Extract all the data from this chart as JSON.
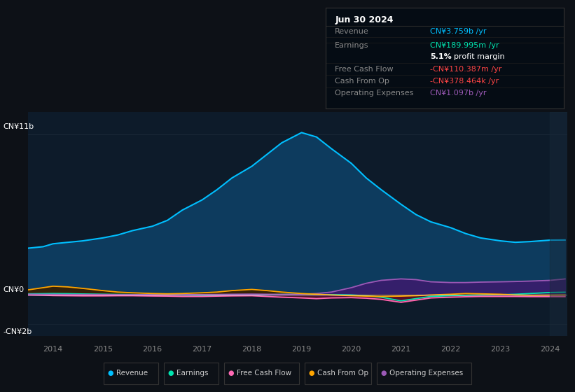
{
  "bg_color": "#0d1117",
  "chart_bg": "#0d1b2a",
  "years": [
    2013.5,
    2013.8,
    2014.0,
    2014.3,
    2014.6,
    2015.0,
    2015.3,
    2015.6,
    2016.0,
    2016.3,
    2016.6,
    2017.0,
    2017.3,
    2017.6,
    2018.0,
    2018.3,
    2018.6,
    2019.0,
    2019.3,
    2019.6,
    2020.0,
    2020.3,
    2020.6,
    2021.0,
    2021.3,
    2021.6,
    2022.0,
    2022.3,
    2022.6,
    2023.0,
    2023.3,
    2023.6,
    2024.0,
    2024.3
  ],
  "revenue": [
    3.2,
    3.3,
    3.5,
    3.6,
    3.7,
    3.9,
    4.1,
    4.4,
    4.7,
    5.1,
    5.8,
    6.5,
    7.2,
    8.0,
    8.8,
    9.6,
    10.4,
    11.1,
    10.8,
    10.0,
    9.0,
    8.0,
    7.2,
    6.2,
    5.5,
    5.0,
    4.6,
    4.2,
    3.9,
    3.7,
    3.6,
    3.65,
    3.75,
    3.759
  ],
  "earnings": [
    0.08,
    0.09,
    0.1,
    0.09,
    0.07,
    0.05,
    0.04,
    0.03,
    0.02,
    0.01,
    0.0,
    -0.02,
    -0.03,
    -0.02,
    0.0,
    0.02,
    0.04,
    0.05,
    0.04,
    0.02,
    0.0,
    -0.05,
    -0.15,
    -0.4,
    -0.25,
    -0.1,
    -0.05,
    -0.02,
    0.0,
    0.02,
    0.05,
    0.1,
    0.17,
    0.19
  ],
  "free_cash_flow": [
    0.0,
    -0.02,
    -0.04,
    -0.05,
    -0.06,
    -0.06,
    -0.05,
    -0.05,
    -0.07,
    -0.08,
    -0.1,
    -0.1,
    -0.08,
    -0.06,
    -0.05,
    -0.1,
    -0.15,
    -0.2,
    -0.25,
    -0.2,
    -0.18,
    -0.22,
    -0.3,
    -0.5,
    -0.35,
    -0.2,
    -0.15,
    -0.12,
    -0.1,
    -0.1,
    -0.1,
    -0.11,
    -0.11,
    -0.11
  ],
  "cash_from_op": [
    0.35,
    0.5,
    0.6,
    0.55,
    0.45,
    0.3,
    0.2,
    0.15,
    0.1,
    0.08,
    0.1,
    0.15,
    0.2,
    0.3,
    0.38,
    0.3,
    0.2,
    0.1,
    0.05,
    0.0,
    -0.05,
    -0.08,
    -0.1,
    -0.08,
    -0.05,
    0.0,
    0.05,
    0.1,
    0.08,
    0.05,
    0.0,
    -0.02,
    -0.01,
    -0.0004
  ],
  "operating_expenses": [
    0.05,
    0.04,
    0.04,
    0.03,
    0.03,
    0.03,
    0.02,
    0.02,
    0.02,
    0.02,
    0.02,
    0.03,
    0.04,
    0.05,
    0.06,
    0.05,
    0.04,
    0.05,
    0.1,
    0.2,
    0.5,
    0.8,
    1.0,
    1.1,
    1.05,
    0.9,
    0.85,
    0.85,
    0.88,
    0.9,
    0.92,
    0.95,
    1.0,
    1.097
  ],
  "revenue_color": "#00bfff",
  "earnings_color": "#00e5b0",
  "fcf_color": "#ff69b4",
  "cashop_color": "#ffa500",
  "opex_color": "#9b59b6",
  "legend_items": [
    "Revenue",
    "Earnings",
    "Free Cash Flow",
    "Cash From Op",
    "Operating Expenses"
  ],
  "legend_colors": [
    "#00bfff",
    "#00e5b0",
    "#ff69b4",
    "#ffa500",
    "#9b59b6"
  ],
  "info_box": {
    "date": "Jun 30 2024",
    "rows": [
      {
        "label": "Revenue",
        "value": "CN¥3.759b /yr",
        "value_color": "#00bfff"
      },
      {
        "label": "Earnings",
        "value": "CN¥189.995m /yr",
        "value_color": "#00e5b0"
      },
      {
        "label": "",
        "value": "5.1% profit margin",
        "value_color": "#ffffff"
      },
      {
        "label": "Free Cash Flow",
        "value": "-CN¥110.387m /yr",
        "value_color": "#ff4444"
      },
      {
        "label": "Cash From Op",
        "value": "-CN¥378.464k /yr",
        "value_color": "#ff4444"
      },
      {
        "label": "Operating Expenses",
        "value": "CN¥1.097b /yr",
        "value_color": "#9b59b6"
      }
    ]
  }
}
